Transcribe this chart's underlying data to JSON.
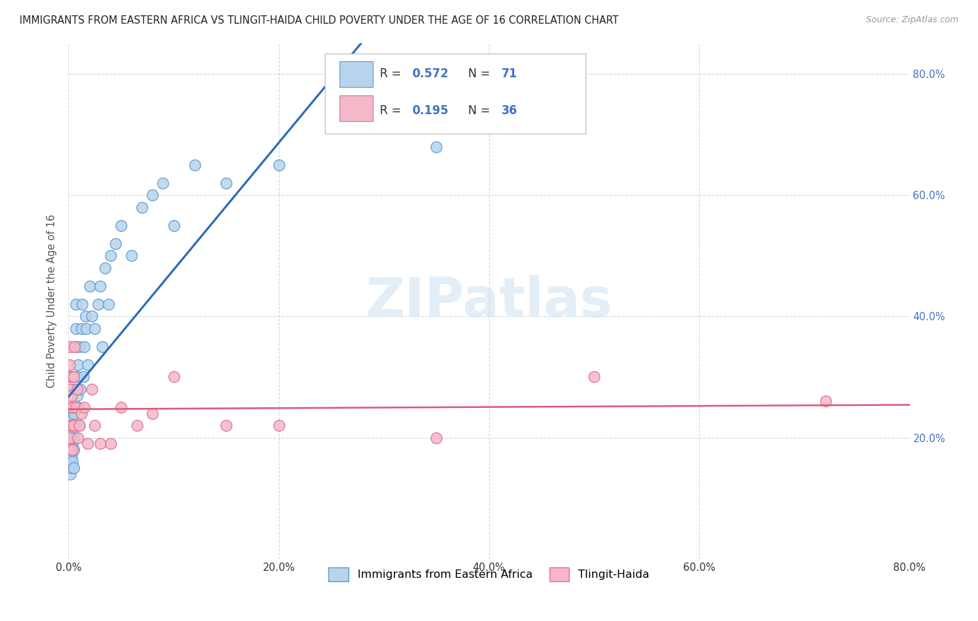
{
  "title": "IMMIGRANTS FROM EASTERN AFRICA VS TLINGIT-HAIDA CHILD POVERTY UNDER THE AGE OF 16 CORRELATION CHART",
  "source": "Source: ZipAtlas.com",
  "ylabel": "Child Poverty Under the Age of 16",
  "watermark": "ZIPatlas",
  "xlim": [
    0.0,
    0.8
  ],
  "ylim": [
    0.0,
    0.85
  ],
  "xtick_vals": [
    0.0,
    0.2,
    0.4,
    0.6,
    0.8
  ],
  "ytick_vals": [
    0.0,
    0.2,
    0.4,
    0.6,
    0.8
  ],
  "scatter1_color": "#b8d4ec",
  "scatter1_edge": "#5b9bd5",
  "scatter2_color": "#f4b8c8",
  "scatter2_edge": "#e07090",
  "line1_color": "#2b6cb8",
  "line2_color": "#e05878",
  "background_color": "#ffffff",
  "grid_color": "#d8d8d8",
  "legend_label1": "Immigrants from Eastern Africa",
  "legend_label2": "Tlingit-Haida",
  "scatter1_x": [
    0.001,
    0.001,
    0.001,
    0.001,
    0.001,
    0.001,
    0.001,
    0.001,
    0.002,
    0.002,
    0.002,
    0.002,
    0.002,
    0.002,
    0.002,
    0.002,
    0.003,
    0.003,
    0.003,
    0.003,
    0.003,
    0.003,
    0.004,
    0.004,
    0.004,
    0.004,
    0.005,
    0.005,
    0.005,
    0.005,
    0.005,
    0.006,
    0.006,
    0.006,
    0.007,
    0.007,
    0.007,
    0.008,
    0.008,
    0.009,
    0.009,
    0.01,
    0.01,
    0.011,
    0.012,
    0.013,
    0.014,
    0.015,
    0.016,
    0.017,
    0.018,
    0.02,
    0.022,
    0.025,
    0.028,
    0.03,
    0.032,
    0.035,
    0.038,
    0.04,
    0.045,
    0.05,
    0.06,
    0.07,
    0.08,
    0.09,
    0.1,
    0.12,
    0.15,
    0.2,
    0.35
  ],
  "scatter1_y": [
    0.17,
    0.19,
    0.2,
    0.21,
    0.22,
    0.23,
    0.16,
    0.15,
    0.18,
    0.19,
    0.2,
    0.21,
    0.22,
    0.16,
    0.14,
    0.24,
    0.17,
    0.18,
    0.2,
    0.22,
    0.15,
    0.25,
    0.19,
    0.21,
    0.23,
    0.16,
    0.18,
    0.2,
    0.24,
    0.28,
    0.15,
    0.22,
    0.25,
    0.3,
    0.35,
    0.38,
    0.42,
    0.3,
    0.27,
    0.32,
    0.25,
    0.22,
    0.35,
    0.28,
    0.38,
    0.42,
    0.3,
    0.35,
    0.4,
    0.38,
    0.32,
    0.45,
    0.4,
    0.38,
    0.42,
    0.45,
    0.35,
    0.48,
    0.42,
    0.5,
    0.52,
    0.55,
    0.5,
    0.58,
    0.6,
    0.62,
    0.55,
    0.65,
    0.62,
    0.65,
    0.68
  ],
  "scatter2_x": [
    0.001,
    0.001,
    0.001,
    0.001,
    0.002,
    0.002,
    0.002,
    0.002,
    0.003,
    0.003,
    0.003,
    0.004,
    0.004,
    0.005,
    0.005,
    0.006,
    0.007,
    0.008,
    0.009,
    0.01,
    0.012,
    0.015,
    0.018,
    0.022,
    0.025,
    0.03,
    0.04,
    0.05,
    0.065,
    0.08,
    0.1,
    0.15,
    0.2,
    0.35,
    0.5,
    0.72
  ],
  "scatter2_y": [
    0.28,
    0.32,
    0.22,
    0.18,
    0.3,
    0.25,
    0.2,
    0.35,
    0.27,
    0.22,
    0.3,
    0.25,
    0.18,
    0.3,
    0.22,
    0.35,
    0.25,
    0.28,
    0.2,
    0.22,
    0.24,
    0.25,
    0.19,
    0.28,
    0.22,
    0.19,
    0.19,
    0.25,
    0.22,
    0.24,
    0.3,
    0.22,
    0.22,
    0.2,
    0.3,
    0.26
  ]
}
